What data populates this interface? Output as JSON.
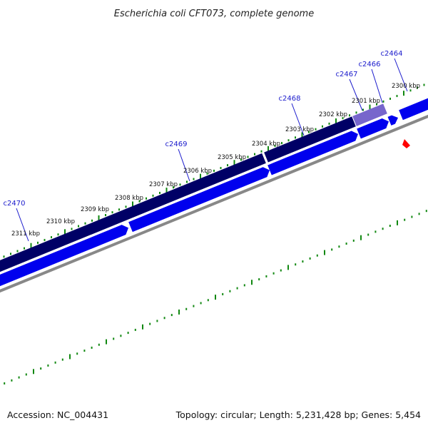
{
  "title": "Escherichia coli CFT073, complete genome",
  "footer": {
    "accession": "Accession: NC_004431",
    "summary": "Topology: circular; Length: 5,231,428 bp; Genes: 5,454"
  },
  "colors": {
    "forward_gene": "#0000ee",
    "reverse_gene": "#000066",
    "selected_gene": "#7766cc",
    "backbone": "#888888",
    "tick": "#118811",
    "gene_label": "#1a1acc",
    "marker": "#ff0000"
  },
  "kbp_ticks": [
    "2300 kbp",
    "2301 kbp",
    "2302 kbp",
    "2303 kbp",
    "2304 kbp",
    "2305 kbp",
    "2306 kbp",
    "2307 kbp",
    "2308 kbp",
    "2309 kbp",
    "2310 kbp",
    "2311 kbp"
  ],
  "gene_labels": [
    "c2464",
    "c2466",
    "c2467",
    "c2468",
    "c2469",
    "c2470"
  ]
}
